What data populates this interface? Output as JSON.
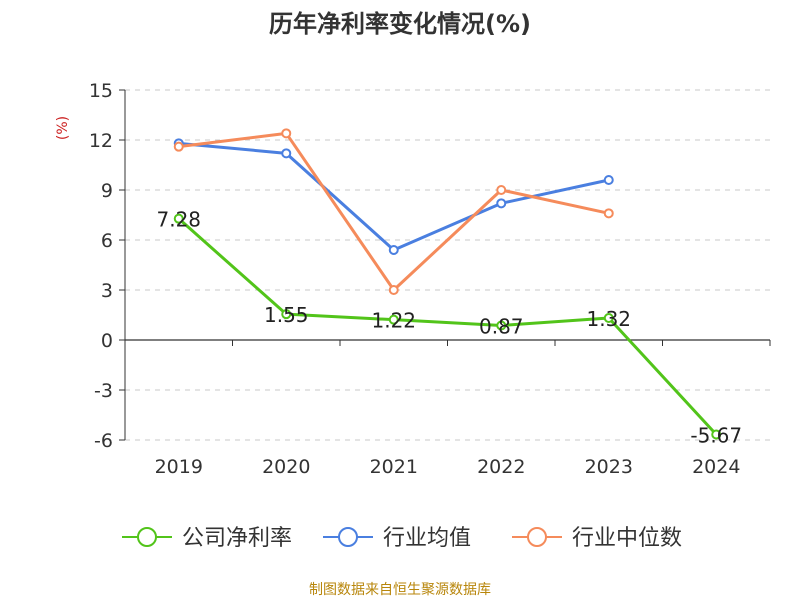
{
  "chart_data": {
    "type": "line",
    "title": "历年净利率变化情况(%)",
    "ylabel": "(%)",
    "categories": [
      "2019",
      "2020",
      "2021",
      "2022",
      "2023",
      "2024"
    ],
    "ylim": [
      -6,
      15
    ],
    "yticks": [
      15,
      12,
      9,
      6,
      3,
      0,
      -3,
      -6
    ],
    "grid": true,
    "legend_position": "bottom",
    "series": [
      {
        "name": "公司净利率",
        "color": "#52c41a",
        "values": [
          7.28,
          1.55,
          1.22,
          0.87,
          1.32,
          -5.67
        ],
        "labels": [
          "7.28",
          "1.55",
          "1.22",
          "0.87",
          "1.32",
          "-5.67"
        ]
      },
      {
        "name": "行业均值",
        "color": "#4a7fe0",
        "values": [
          11.8,
          11.2,
          5.4,
          8.2,
          9.6,
          null
        ]
      },
      {
        "name": "行业中位数",
        "color": "#f58b5b",
        "values": [
          11.6,
          12.4,
          3.0,
          9.0,
          7.6,
          null
        ]
      }
    ],
    "source": "制图数据来自恒生聚源数据库"
  }
}
